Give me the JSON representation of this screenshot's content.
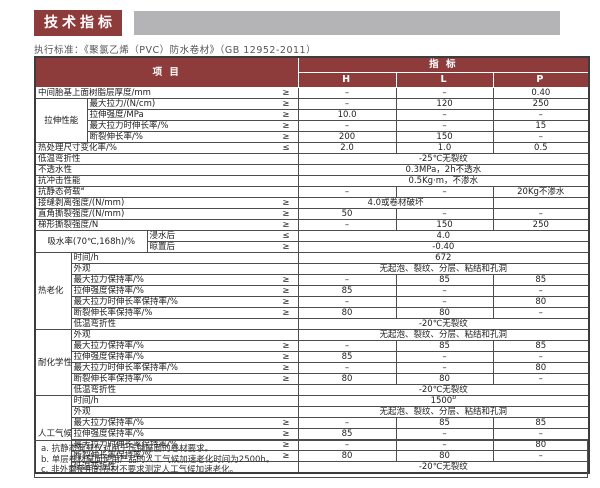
{
  "title": {
    "text": "技术指标"
  },
  "standard_line": "执行标准：《聚氯乙烯（PVC）防水卷材》（GB 12952-2011）",
  "colors": {
    "accent_red": "#8e3b3b",
    "bar_gray": "#b4b4b6",
    "border": "#4d4d4d"
  },
  "table": {
    "header": {
      "item": "项 目",
      "indicator": "指  标",
      "cols": [
        "H",
        "L",
        "P"
      ]
    },
    "rows": [
      {
        "cells": [
          {
            "t": "中间胎基上面树脂层厚度/mm",
            "c": 5,
            "cls": "lab",
            "sym": "≥"
          },
          {
            "t": "–",
            "cls": "val"
          },
          {
            "t": "–",
            "cls": "val"
          },
          {
            "t": "0.40",
            "cls": "val"
          }
        ]
      },
      {
        "cells": [
          {
            "t": "拉伸性能",
            "c": 2,
            "r": 4,
            "cls": "grp"
          },
          {
            "t": "最大拉力/(N/cm)",
            "c": 3,
            "cls": "lab",
            "sym": "≥"
          },
          {
            "t": "–",
            "cls": "val"
          },
          {
            "t": "120",
            "cls": "val"
          },
          {
            "t": "250",
            "cls": "val"
          }
        ]
      },
      {
        "cells": [
          {
            "t": "拉伸强度/MPa",
            "c": 3,
            "cls": "lab",
            "sym": "≥"
          },
          {
            "t": "10.0",
            "cls": "val"
          },
          {
            "t": "–",
            "cls": "val"
          },
          {
            "t": "–",
            "cls": "val"
          }
        ]
      },
      {
        "cells": [
          {
            "t": "最大拉力时伸长率/%",
            "c": 3,
            "cls": "lab",
            "sym": "≥"
          },
          {
            "t": "–",
            "cls": "val"
          },
          {
            "t": "–",
            "cls": "val"
          },
          {
            "t": "15",
            "cls": "val"
          }
        ]
      },
      {
        "cells": [
          {
            "t": "断裂伸长率/%",
            "c": 3,
            "cls": "lab",
            "sym": "≥"
          },
          {
            "t": "200",
            "cls": "val"
          },
          {
            "t": "150",
            "cls": "val"
          },
          {
            "t": "–",
            "cls": "val"
          }
        ]
      },
      {
        "cells": [
          {
            "t": "热处理尺寸变化率/%",
            "c": 5,
            "cls": "lab",
            "sym": "≤"
          },
          {
            "t": "2.0",
            "cls": "val"
          },
          {
            "t": "1.0",
            "cls": "val"
          },
          {
            "t": "0.5",
            "cls": "val"
          }
        ]
      },
      {
        "cells": [
          {
            "t": "低温弯折性",
            "c": 5,
            "cls": "lab"
          },
          {
            "t": "-25℃无裂纹",
            "c": 3,
            "cls": "val"
          }
        ]
      },
      {
        "cells": [
          {
            "t": "不透水性",
            "c": 5,
            "cls": "lab"
          },
          {
            "t": "0.3MPa，2h不透水",
            "c": 3,
            "cls": "val"
          }
        ]
      },
      {
        "cells": [
          {
            "t": "抗冲击性能",
            "c": 5,
            "cls": "lab"
          },
          {
            "t": "0.5Kg·m，不渗水",
            "c": 3,
            "cls": "val"
          }
        ]
      },
      {
        "cells": [
          {
            "t": "抗静态荷载",
            "sup": "a",
            "c": 5,
            "cls": "lab"
          },
          {
            "t": "–",
            "cls": "val"
          },
          {
            "t": "–",
            "cls": "val"
          },
          {
            "t": "20Kg不渗水",
            "cls": "val"
          }
        ]
      },
      {
        "cells": [
          {
            "t": "接缝剥离强度/(N/mm)",
            "c": 5,
            "cls": "lab",
            "sym": "≥"
          },
          {
            "t": "4.0或卷材破坏",
            "c": 2,
            "cls": "val"
          },
          {
            "t": "",
            "cls": "val"
          }
        ]
      },
      {
        "cells": [
          {
            "t": "直角撕裂强度/(N/mm)",
            "c": 5,
            "cls": "lab",
            "sym": "≥"
          },
          {
            "t": "50",
            "cls": "val"
          },
          {
            "t": "–",
            "cls": "val"
          },
          {
            "t": "–",
            "cls": "val"
          }
        ]
      },
      {
        "cells": [
          {
            "t": "梯形撕裂强度/N",
            "c": 5,
            "cls": "lab",
            "sym": "≥"
          },
          {
            "t": "–",
            "cls": "val"
          },
          {
            "t": "150",
            "cls": "val"
          },
          {
            "t": "250",
            "cls": "val"
          }
        ]
      },
      {
        "cells": [
          {
            "t": "吸水率(70℃,168h)/%",
            "c": 3,
            "r": 2,
            "cls": "grp"
          },
          {
            "t": "浸水后",
            "c": 2,
            "cls": "lab",
            "sym": "≤"
          },
          {
            "t": "4.0",
            "c": 3,
            "cls": "val"
          }
        ]
      },
      {
        "cells": [
          {
            "t": "晾置后",
            "c": 2,
            "cls": "lab",
            "sym": "≥"
          },
          {
            "t": "-0.40",
            "c": 3,
            "cls": "val"
          }
        ]
      },
      {
        "cells": [
          {
            "t": "热老化\n（80℃）",
            "c": 1,
            "r": 7,
            "cls": "grp"
          },
          {
            "t": "时间/h",
            "c": 4,
            "cls": "lab"
          },
          {
            "t": "672",
            "c": 3,
            "cls": "val"
          }
        ]
      },
      {
        "cells": [
          {
            "t": "外观",
            "c": 4,
            "cls": "lab"
          },
          {
            "t": "无起泡、裂纹、分层、粘结和孔洞",
            "c": 3,
            "cls": "val"
          }
        ]
      },
      {
        "cells": [
          {
            "t": "最大拉力保持率/%",
            "c": 4,
            "cls": "lab",
            "sym": "≥"
          },
          {
            "t": "–",
            "cls": "val"
          },
          {
            "t": "85",
            "cls": "val"
          },
          {
            "t": "85",
            "cls": "val"
          }
        ]
      },
      {
        "cells": [
          {
            "t": "拉伸强度保持率/%",
            "c": 4,
            "cls": "lab",
            "sym": "≥"
          },
          {
            "t": "85",
            "cls": "val"
          },
          {
            "t": "–",
            "cls": "val"
          },
          {
            "t": "–",
            "cls": "val"
          }
        ]
      },
      {
        "cells": [
          {
            "t": "最大拉力时伸长率保持率/%",
            "c": 4,
            "cls": "lab",
            "sym": "≥"
          },
          {
            "t": "–",
            "cls": "val"
          },
          {
            "t": "–",
            "cls": "val"
          },
          {
            "t": "80",
            "cls": "val"
          }
        ]
      },
      {
        "cells": [
          {
            "t": "断裂伸长率保持率/%",
            "c": 4,
            "cls": "lab",
            "sym": "≥"
          },
          {
            "t": "80",
            "cls": "val"
          },
          {
            "t": "80",
            "cls": "val"
          },
          {
            "t": "–",
            "cls": "val"
          }
        ]
      },
      {
        "cells": [
          {
            "t": "低温弯折性",
            "c": 4,
            "cls": "lab"
          },
          {
            "t": "-20℃无裂纹",
            "c": 3,
            "cls": "val"
          }
        ]
      },
      {
        "cells": [
          {
            "t": "耐化学性",
            "c": 1,
            "r": 6,
            "cls": "grp"
          },
          {
            "t": "外观",
            "c": 4,
            "cls": "lab"
          },
          {
            "t": "无起泡、裂纹、分层、粘结和孔洞",
            "c": 3,
            "cls": "val"
          }
        ]
      },
      {
        "cells": [
          {
            "t": "最大拉力保持率/%",
            "c": 4,
            "cls": "lab",
            "sym": "≥"
          },
          {
            "t": "–",
            "cls": "val"
          },
          {
            "t": "85",
            "cls": "val"
          },
          {
            "t": "85",
            "cls": "val"
          }
        ]
      },
      {
        "cells": [
          {
            "t": "拉伸强度保持率/%",
            "c": 4,
            "cls": "lab",
            "sym": "≥"
          },
          {
            "t": "85",
            "cls": "val"
          },
          {
            "t": "–",
            "cls": "val"
          },
          {
            "t": "–",
            "cls": "val"
          }
        ]
      },
      {
        "cells": [
          {
            "t": "最大拉力时伸长率保持率/%",
            "c": 4,
            "cls": "lab",
            "sym": "≥"
          },
          {
            "t": "–",
            "cls": "val"
          },
          {
            "t": "–",
            "cls": "val"
          },
          {
            "t": "80",
            "cls": "val"
          }
        ]
      },
      {
        "cells": [
          {
            "t": "断裂伸长率保持率/%",
            "c": 4,
            "cls": "lab",
            "sym": "≥"
          },
          {
            "t": "80",
            "cls": "val"
          },
          {
            "t": "80",
            "cls": "val"
          },
          {
            "t": "–",
            "cls": "val"
          }
        ]
      },
      {
        "cells": [
          {
            "t": "低温弯折性",
            "c": 4,
            "cls": "lab"
          },
          {
            "t": "-20℃无裂纹",
            "c": 3,
            "cls": "val"
          }
        ]
      },
      {
        "cells": [
          {
            "t": "人工气候\n加速老化",
            "sup": "c",
            "c": 1,
            "r": 7,
            "cls": "grp"
          },
          {
            "t": "时间/h",
            "c": 4,
            "cls": "lab"
          },
          {
            "t": "1500",
            "sup": "b",
            "c": 3,
            "cls": "val"
          }
        ]
      },
      {
        "cells": [
          {
            "t": "外观",
            "c": 4,
            "cls": "lab"
          },
          {
            "t": "无起泡、裂纹、分层、粘结和孔洞",
            "c": 3,
            "cls": "val"
          }
        ]
      },
      {
        "cells": [
          {
            "t": "最大拉力保持率/%",
            "c": 4,
            "cls": "lab",
            "sym": "≥"
          },
          {
            "t": "–",
            "cls": "val"
          },
          {
            "t": "85",
            "cls": "val"
          },
          {
            "t": "85",
            "cls": "val"
          }
        ]
      },
      {
        "cells": [
          {
            "t": "拉伸强度保持率/%",
            "c": 4,
            "cls": "lab",
            "sym": "≥"
          },
          {
            "t": "85",
            "cls": "val"
          },
          {
            "t": "–",
            "cls": "val"
          },
          {
            "t": "–",
            "cls": "val"
          }
        ]
      },
      {
        "cells": [
          {
            "t": "最大拉力时伸长率保持率/%",
            "c": 4,
            "cls": "lab",
            "sym": "≥"
          },
          {
            "t": "–",
            "cls": "val"
          },
          {
            "t": "–",
            "cls": "val"
          },
          {
            "t": "80",
            "cls": "val"
          }
        ]
      },
      {
        "cells": [
          {
            "t": "断裂伸长率保持率/%",
            "c": 4,
            "cls": "lab",
            "sym": "≥"
          },
          {
            "t": "80",
            "cls": "val"
          },
          {
            "t": "80",
            "cls": "val"
          },
          {
            "t": "–",
            "cls": "val"
          }
        ]
      },
      {
        "cells": [
          {
            "t": "低温弯折性",
            "c": 4,
            "cls": "lab"
          },
          {
            "t": "-20℃无裂纹",
            "c": 3,
            "cls": "val"
          }
        ]
      }
    ]
  },
  "footnotes": [
    "a. 抗静态荷载仅对用于压铺屋面的卷材要求。",
    "b. 单层卷材屋面使用产品的人工气候加速老化时间为2500h。",
    "c. 非外露使用的卷材不要求测定人工气候加速老化。"
  ]
}
